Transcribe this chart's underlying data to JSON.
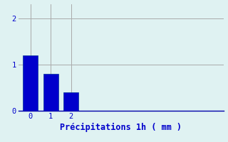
{
  "categories": [
    0,
    1,
    2
  ],
  "values": [
    1.2,
    0.8,
    0.4
  ],
  "bar_color": "#0000cc",
  "bar_edge_color": "#003399",
  "background_color": "#dff2f2",
  "grid_color": "#aaaaaa",
  "xlabel": "Précipitations 1h ( mm )",
  "xlabel_color": "#0000cc",
  "tick_color": "#0000cc",
  "axis_color": "#0000aa",
  "ylim": [
    0,
    2.3
  ],
  "xlim": [
    -0.6,
    9.5
  ],
  "yticks": [
    0,
    1,
    2
  ],
  "xticks": [
    0,
    1,
    2
  ],
  "bar_width": 0.75,
  "xlabel_fontsize": 8.5,
  "tick_fontsize": 7.5
}
